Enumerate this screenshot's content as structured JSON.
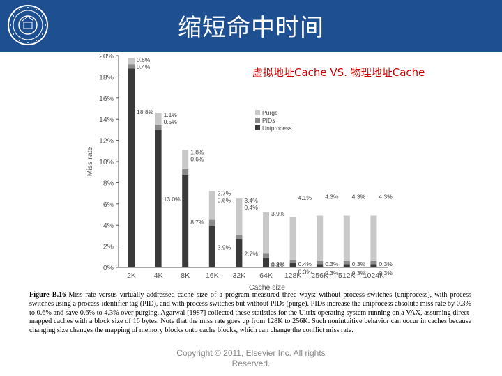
{
  "header": {
    "title": "缩短命中时间",
    "subtitle": "虚拟地址Cache VS. 物理地址Cache"
  },
  "colors": {
    "header_bg": "#1d4f91",
    "purge": "#c8c8c8",
    "pids": "#8a8a8a",
    "uniprocess": "#3a3a3a",
    "subtitle": "#cc0000"
  },
  "chart_data": {
    "type": "bar",
    "stacked": true,
    "xlabel": "Cache size",
    "ylabel": "Miss rate",
    "ylim": [
      0,
      20
    ],
    "yticks": [
      "0%",
      "2%",
      "4%",
      "6%",
      "8%",
      "10%",
      "12%",
      "14%",
      "16%",
      "18%",
      "20%"
    ],
    "categories": [
      "2K",
      "4K",
      "8K",
      "16K",
      "32K",
      "64K",
      "128K",
      "256K",
      "512K",
      "1024K"
    ],
    "legend_position": "right",
    "series": [
      {
        "name": "Uniprocess",
        "values": [
          18.8,
          13.0,
          8.7,
          3.9,
          2.7,
          0.9,
          0.4,
          0.3,
          0.3,
          0.3
        ]
      },
      {
        "name": "PIDs",
        "values": [
          0.4,
          0.5,
          0.6,
          0.6,
          0.4,
          0.4,
          0.3,
          0.3,
          0.3,
          0.3
        ]
      },
      {
        "name": "Purge",
        "values": [
          0.6,
          1.1,
          1.8,
          2.7,
          3.4,
          3.9,
          4.1,
          4.3,
          4.3,
          4.3
        ]
      }
    ],
    "data_labels": {
      "uniprocess": [
        "18.8%",
        "13.0%",
        "8.7%",
        "3.9%",
        "2.7%",
        "0.9%",
        "0.4%",
        "0.3%",
        "0.3%",
        "0.3%"
      ],
      "pids": [
        "0.4%",
        "0.5%",
        "0.6%",
        "0.6%",
        "0.4%",
        "0.4%",
        "0.3%",
        "0.3%",
        "0.3%",
        "0.3%"
      ],
      "purge": [
        "0.6%",
        "1.1%",
        "1.8%",
        "2.7%",
        "3.4%",
        "3.9%",
        "4.1%",
        "4.3%",
        "4.3%",
        "4.3%"
      ]
    }
  },
  "caption": {
    "label": "Figure B.16",
    "text": "Miss rate versus virtually addressed cache size of a program measured three ways: without process switches (uniprocess), with process switches using a process-identifier tag (PID), and with process switches but without PIDs (purge). PIDs increase the uniprocess absolute miss rate by 0.3% to 0.6% and save 0.6% to 4.3% over purging. Agarwal [1987] collected these statistics for the Ultrix operating system running on a VAX, assuming direct-mapped caches with a block size of 16 bytes. Note that the miss rate goes up from 128K to 256K. Such nonintuitive behavior can occur in caches because changing size changes the mapping of memory blocks onto cache blocks, which can change the conflict miss rate."
  },
  "footer": {
    "copyright_line1": "Copyright © 2011, Elsevier Inc. All rights",
    "copyright_line2": "Reserved."
  }
}
